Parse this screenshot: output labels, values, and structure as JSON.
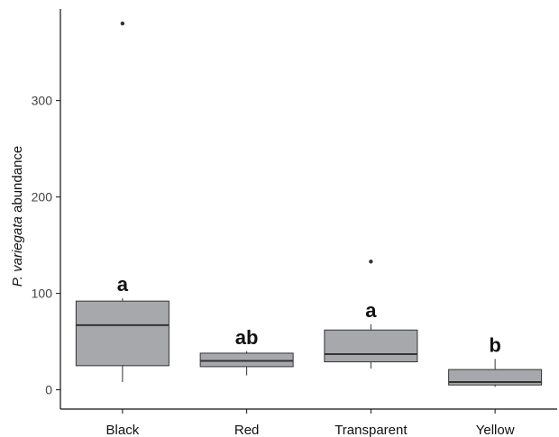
{
  "chart_data": {
    "type": "boxplot",
    "title": "",
    "xlabel": "",
    "ylabel": {
      "italic": "P. variegata",
      "plain": " abundance"
    },
    "ylim": [
      -20,
      395
    ],
    "y_ticks": [
      0,
      100,
      200,
      300
    ],
    "grid": false,
    "box_fill": "#a7a8ab",
    "box_stroke": "#333333",
    "categories": [
      "Black",
      "Red",
      "Transparent",
      "Yellow"
    ],
    "series": [
      {
        "category": "Black",
        "whisker_low": 8,
        "q1": 25,
        "median": 67,
        "q3": 92,
        "whisker_high": 95,
        "outliers": [
          380
        ],
        "significance": "a"
      },
      {
        "category": "Red",
        "whisker_low": 15,
        "q1": 24,
        "median": 30,
        "q3": 38,
        "whisker_high": 40,
        "outliers": [],
        "significance": "ab"
      },
      {
        "category": "Transparent",
        "whisker_low": 22,
        "q1": 29,
        "median": 37,
        "q3": 62,
        "whisker_high": 68,
        "outliers": [
          133
        ],
        "significance": "a"
      },
      {
        "category": "Yellow",
        "whisker_low": 3,
        "q1": 5,
        "median": 8,
        "q3": 21,
        "whisker_high": 32,
        "outliers": [],
        "significance": "b"
      }
    ]
  }
}
